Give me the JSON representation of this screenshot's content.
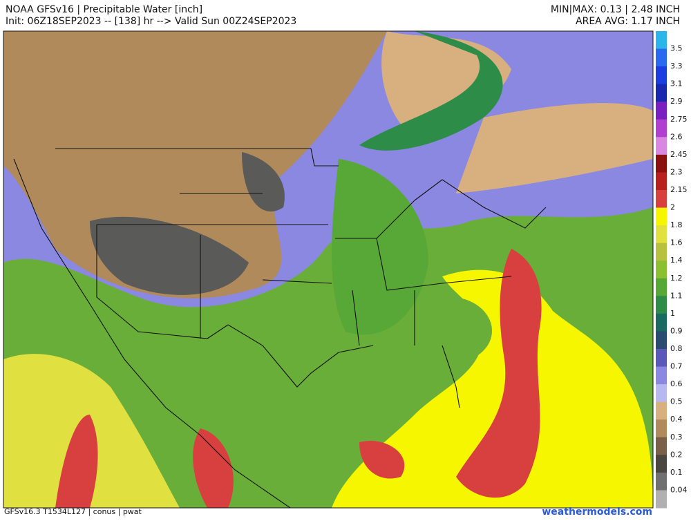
{
  "header": {
    "title": "NOAA GFSv16 |  Precipitable Water [inch]",
    "subtitle": "Init: 06Z18SEP2023 -- [138] hr --> Valid Sun 00Z24SEP2023",
    "minmax": "MIN|MAX: 0.13 | 2.48 INCH",
    "area_avg": "AREA AVG: 1.17 INCH"
  },
  "colorbar": {
    "labels": [
      "3.5",
      "3.3",
      "3.1",
      "2.9",
      "2.75",
      "2.6",
      "2.45",
      "2.3",
      "2.15",
      "2",
      "1.8",
      "1.6",
      "1.4",
      "1.2",
      "1.1",
      "1",
      "0.9",
      "0.8",
      "0.7",
      "0.6",
      "0.5",
      "0.4",
      "0.3",
      "0.2",
      "0.1",
      "0.04"
    ],
    "colors": [
      "#2ab6e8",
      "#2a6af0",
      "#1a3ee0",
      "#1a28b0",
      "#7a20c0",
      "#b040d0",
      "#d888e0",
      "#8b1010",
      "#b82020",
      "#d84040",
      "#f6f600",
      "#e0e040",
      "#b8c040",
      "#8cc030",
      "#58a838",
      "#2c8c48",
      "#1a6a62",
      "#2a4c70",
      "#5a58b8",
      "#8a88e0",
      "#b8b8f0",
      "#d8b080",
      "#b08a5a",
      "#7a6048",
      "#4a4640",
      "#707070",
      "#b0b0b0"
    ]
  },
  "footer": {
    "model": "GFSv16.3 T1534L127 | conus | pwat",
    "site": "weathermodels.com"
  }
}
